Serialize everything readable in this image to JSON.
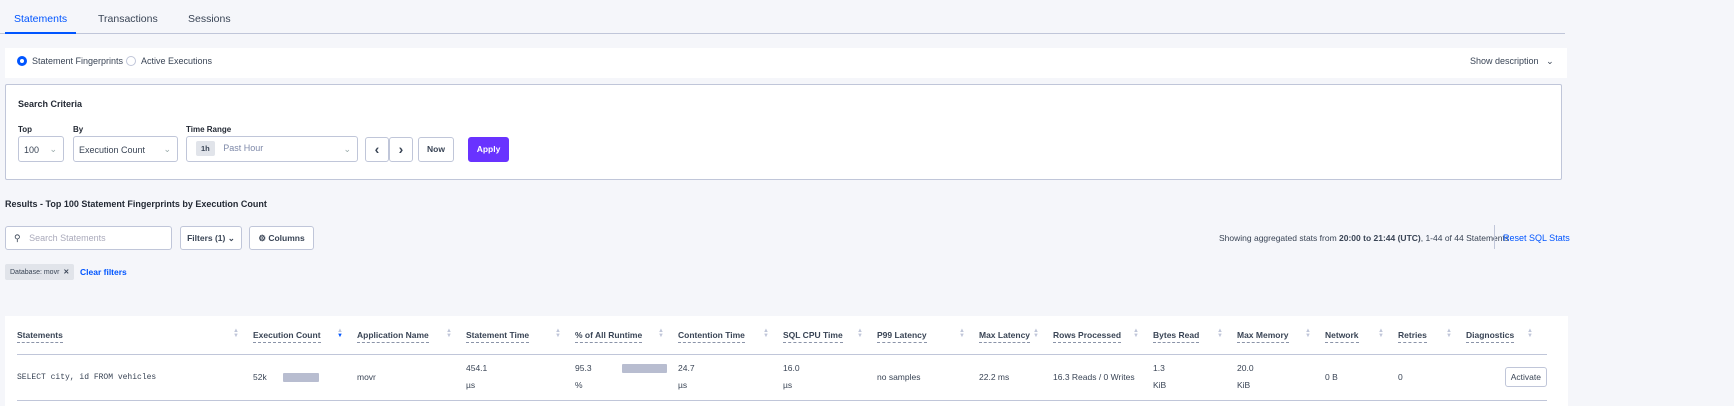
{
  "tabs": [
    {
      "label": "Statements",
      "active": true
    },
    {
      "label": "Transactions"
    },
    {
      "label": "Sessions"
    }
  ],
  "view_mode": {
    "options": [
      "Statement Fingerprints",
      "Active Executions"
    ],
    "selected": "Statement Fingerprints",
    "show_description": "Show description"
  },
  "search_criteria": {
    "title": "Search Criteria",
    "top_label": "Top",
    "top_value": "100",
    "by_label": "By",
    "by_value": "Execution Count",
    "time_range_label": "Time Range",
    "time_badge": "1h",
    "time_value": "Past Hour",
    "now": "Now",
    "apply": "Apply"
  },
  "results": {
    "title": "Results - Top 100 Statement Fingerprints by Execution Count",
    "search_placeholder": "Search Statements",
    "filters": "Filters (1)",
    "columns": "Columns",
    "summary_prefix": "Showing aggregated stats from ",
    "summary_range": "20:00 to 21:44 (UTC)",
    "summary_suffix": ", 1-44 of 44 Statements",
    "reset": "Reset SQL Stats",
    "filter_tag": "Database: movr",
    "clear_filters": "Clear filters"
  },
  "table": {
    "headers": [
      "Statements",
      "Execution Count",
      "Application Name",
      "Statement Time",
      "% of All Runtime",
      "Contention Time",
      "SQL CPU Time",
      "P99 Latency",
      "Max Latency",
      "Rows Processed",
      "Bytes Read",
      "Max Memory",
      "Network",
      "Retries",
      "Diagnostics"
    ],
    "sorted_column": "Execution Count",
    "rows": [
      {
        "statement": "SELECT city, id FROM vehicles",
        "exec_count": "52k",
        "exec_bar_fraction": 1.0,
        "app": "movr",
        "stmt_time": "454.1",
        "stmt_time_unit": "µs",
        "pct": "95.3",
        "pct_unit": "%",
        "pct_bar_fraction": 0.953,
        "contention": "24.7",
        "contention_unit": "µs",
        "cpu": "16.0",
        "cpu_unit": "µs",
        "p99": "no samples",
        "max_latency": "22.2 ms",
        "rows": "16.3 Reads / 0 Writes",
        "bytes": "1.3",
        "bytes_unit": "KiB",
        "mem": "20.0",
        "mem_unit": "KiB",
        "network": "0 B",
        "retries": "0",
        "diagnostics": "Activate"
      }
    ]
  },
  "colors": {
    "accent": "#0055ff",
    "apply": "#6933ff",
    "bar": "#b8bdd0"
  }
}
